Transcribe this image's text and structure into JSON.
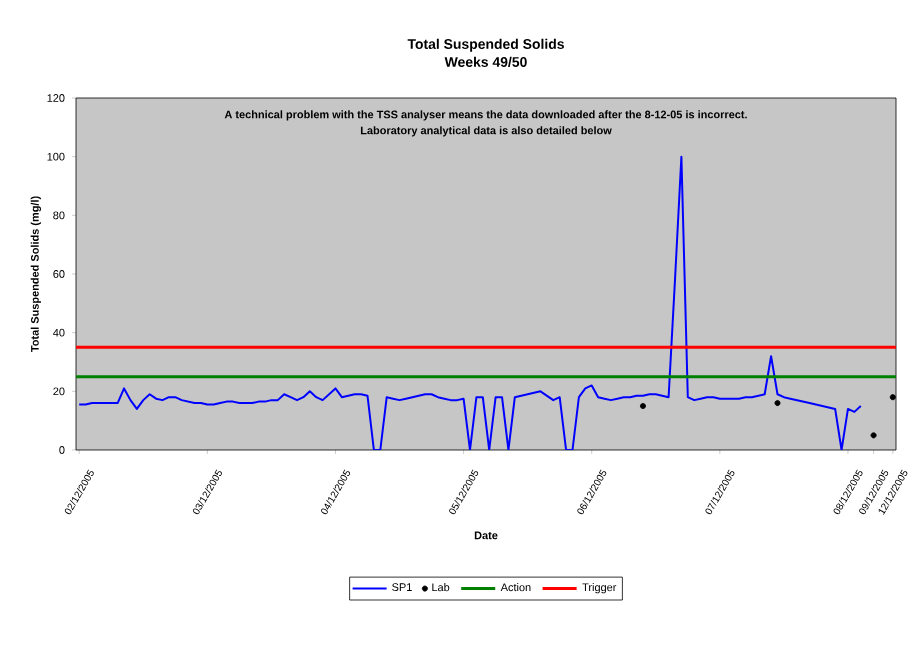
{
  "chart_data": {
    "type": "line",
    "title": "Total Suspended Solids",
    "subtitle": "Weeks 49/50",
    "xlabel": "Date",
    "ylabel": "Total Suspended Solids (mg/l)",
    "annotations": [
      "A technical problem with the TSS analyser means the data downloaded after the 8-12-05 is incorrect.",
      "Laboratory analytical data is also detailed below"
    ],
    "categories": [
      "02/12/2005",
      null,
      null,
      null,
      null,
      null,
      null,
      null,
      null,
      null,
      null,
      null,
      null,
      null,
      null,
      null,
      null,
      null,
      null,
      null,
      "03/12/2005",
      null,
      null,
      null,
      null,
      null,
      null,
      null,
      null,
      null,
      null,
      null,
      null,
      null,
      null,
      null,
      null,
      null,
      null,
      null,
      "04/12/2005",
      null,
      null,
      null,
      null,
      null,
      null,
      null,
      null,
      null,
      null,
      null,
      null,
      null,
      null,
      null,
      null,
      null,
      null,
      null,
      "05/12/2005",
      null,
      null,
      null,
      null,
      null,
      null,
      null,
      null,
      null,
      null,
      null,
      null,
      null,
      null,
      null,
      null,
      null,
      null,
      null,
      "06/12/2005",
      null,
      null,
      null,
      null,
      null,
      null,
      null,
      null,
      null,
      null,
      null,
      null,
      null,
      null,
      null,
      null,
      null,
      null,
      null,
      "07/12/2005",
      null,
      null,
      null,
      null,
      null,
      null,
      null,
      null,
      null,
      null,
      null,
      null,
      null,
      null,
      null,
      null,
      null,
      null,
      null,
      "08/12/2005",
      null,
      null,
      null,
      "09/12/2005",
      null,
      null,
      "12/12/2005"
    ],
    "ylim": [
      0,
      120
    ],
    "yticks": [
      0,
      20,
      40,
      60,
      80,
      100,
      120
    ],
    "grid": false,
    "legend": "bottom",
    "series": [
      {
        "name": "SP1",
        "color": "#0000ff",
        "values": [
          15.5,
          15.5,
          16,
          16,
          16,
          16,
          16,
          21,
          17,
          14,
          17,
          19,
          17.5,
          17,
          18,
          18,
          17,
          16.5,
          16,
          16,
          15.5,
          15.5,
          16,
          16.5,
          16.5,
          16,
          16,
          16,
          16.5,
          16.5,
          17,
          17,
          19,
          18,
          17,
          18,
          20,
          18,
          17,
          19,
          21,
          18,
          18.5,
          19,
          19,
          18.5,
          0,
          0,
          18,
          17.5,
          17,
          17.5,
          18,
          18.5,
          19,
          19,
          18,
          17.5,
          17,
          17,
          17.5,
          0,
          18,
          18,
          0,
          18,
          18,
          0,
          18,
          18.5,
          19,
          19.5,
          20,
          18.5,
          17,
          18,
          0,
          0,
          18,
          21,
          22,
          18,
          17.5,
          17,
          17.5,
          18,
          18,
          18.5,
          18.5,
          19,
          19,
          18.5,
          18,
          58,
          100,
          18,
          17,
          17.5,
          18,
          18,
          17.5,
          17.5,
          17.5,
          17.5,
          18,
          18,
          18.5,
          19,
          32,
          19,
          18,
          17.5,
          17,
          16.5,
          16,
          15.5,
          15,
          14.5,
          14,
          0,
          14,
          13,
          15,
          null,
          null,
          null,
          null,
          null
        ]
      },
      {
        "name": "Lab",
        "type": "scatter",
        "marker": "circle",
        "color": "#000000",
        "values": [
          null,
          null,
          null,
          null,
          null,
          null,
          null,
          null,
          null,
          null,
          null,
          null,
          null,
          null,
          null,
          null,
          null,
          null,
          null,
          null,
          null,
          null,
          null,
          null,
          null,
          null,
          null,
          null,
          null,
          null,
          null,
          null,
          null,
          null,
          null,
          null,
          null,
          null,
          null,
          null,
          null,
          null,
          null,
          null,
          null,
          null,
          null,
          null,
          null,
          null,
          null,
          null,
          null,
          null,
          null,
          null,
          null,
          null,
          null,
          null,
          null,
          null,
          null,
          null,
          null,
          null,
          null,
          null,
          null,
          null,
          null,
          null,
          null,
          null,
          null,
          null,
          null,
          null,
          null,
          null,
          null,
          null,
          null,
          null,
          null,
          null,
          null,
          null,
          15,
          null,
          null,
          null,
          null,
          null,
          null,
          null,
          null,
          null,
          null,
          null,
          null,
          null,
          null,
          null,
          null,
          null,
          null,
          null,
          null,
          16,
          null,
          null,
          null,
          null,
          null,
          null,
          null,
          null,
          null,
          null,
          null,
          null,
          null,
          null,
          5,
          null,
          null,
          18
        ]
      }
    ],
    "ref_lines": [
      {
        "axis": "y",
        "value": 25,
        "label": "Action",
        "color": "#008000"
      },
      {
        "axis": "y",
        "value": 35,
        "label": "Trigger",
        "color": "#ff0000"
      }
    ]
  }
}
